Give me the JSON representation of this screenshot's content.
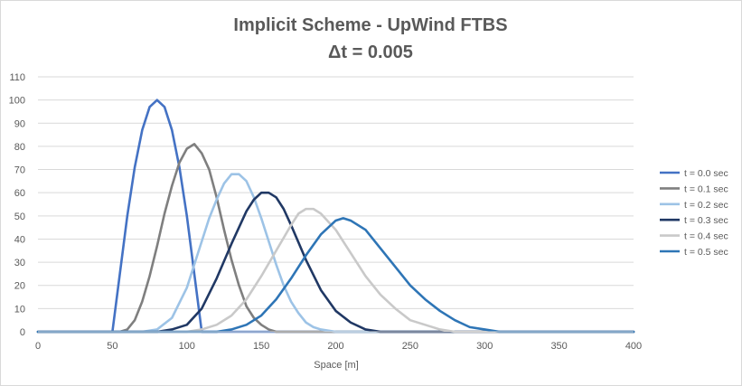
{
  "chart_data": {
    "type": "line",
    "title": "Implicit Scheme - UpWind FTBS",
    "subtitle": "Δt = 0.005",
    "xlabel": "Space [m]",
    "ylabel": "",
    "xlim": [
      0,
      400
    ],
    "ylim": [
      0,
      110
    ],
    "x_ticks": [
      0,
      50,
      100,
      150,
      200,
      250,
      300,
      350,
      400
    ],
    "y_ticks": [
      0,
      10,
      20,
      30,
      40,
      50,
      60,
      70,
      80,
      90,
      100,
      110
    ],
    "grid": "horizontal",
    "legend_position": "right",
    "series": [
      {
        "name": "t = 0.0 sec",
        "color": "#4472c4",
        "points": [
          [
            0,
            0
          ],
          [
            50,
            0
          ],
          [
            55,
            25
          ],
          [
            60,
            50
          ],
          [
            65,
            71
          ],
          [
            70,
            87
          ],
          [
            75,
            97
          ],
          [
            80,
            100
          ],
          [
            85,
            97
          ],
          [
            90,
            87
          ],
          [
            95,
            71
          ],
          [
            100,
            50
          ],
          [
            105,
            25
          ],
          [
            110,
            0
          ],
          [
            400,
            0
          ]
        ]
      },
      {
        "name": "t = 0.1 sec",
        "color": "#7f7f7f",
        "points": [
          [
            0,
            0
          ],
          [
            55,
            0
          ],
          [
            60,
            1
          ],
          [
            65,
            5
          ],
          [
            70,
            13
          ],
          [
            75,
            24
          ],
          [
            80,
            37
          ],
          [
            85,
            51
          ],
          [
            90,
            63
          ],
          [
            95,
            73
          ],
          [
            100,
            79
          ],
          [
            105,
            81
          ],
          [
            110,
            77
          ],
          [
            115,
            70
          ],
          [
            120,
            58
          ],
          [
            125,
            44
          ],
          [
            130,
            31
          ],
          [
            135,
            20
          ],
          [
            140,
            11
          ],
          [
            145,
            6
          ],
          [
            150,
            3
          ],
          [
            155,
            1
          ],
          [
            160,
            0
          ],
          [
            400,
            0
          ]
        ]
      },
      {
        "name": "t = 0.2 sec",
        "color": "#9dc3e6",
        "points": [
          [
            0,
            0
          ],
          [
            70,
            0
          ],
          [
            80,
            1
          ],
          [
            90,
            6
          ],
          [
            100,
            19
          ],
          [
            105,
            29
          ],
          [
            110,
            39
          ],
          [
            115,
            49
          ],
          [
            120,
            57
          ],
          [
            125,
            64
          ],
          [
            130,
            68
          ],
          [
            135,
            68
          ],
          [
            140,
            65
          ],
          [
            145,
            58
          ],
          [
            150,
            49
          ],
          [
            155,
            39
          ],
          [
            160,
            29
          ],
          [
            165,
            20
          ],
          [
            170,
            13
          ],
          [
            175,
            8
          ],
          [
            180,
            4
          ],
          [
            185,
            2
          ],
          [
            190,
            1
          ],
          [
            200,
            0
          ],
          [
            400,
            0
          ]
        ]
      },
      {
        "name": "t = 0.3 sec",
        "color": "#203864",
        "points": [
          [
            0,
            0
          ],
          [
            80,
            0
          ],
          [
            90,
            1
          ],
          [
            100,
            3
          ],
          [
            110,
            10
          ],
          [
            120,
            23
          ],
          [
            130,
            38
          ],
          [
            140,
            52
          ],
          [
            145,
            57
          ],
          [
            150,
            60
          ],
          [
            155,
            60
          ],
          [
            160,
            58
          ],
          [
            165,
            53
          ],
          [
            170,
            46
          ],
          [
            180,
            31
          ],
          [
            190,
            18
          ],
          [
            200,
            9
          ],
          [
            210,
            4
          ],
          [
            220,
            1
          ],
          [
            230,
            0
          ],
          [
            400,
            0
          ]
        ]
      },
      {
        "name": "t = 0.4 sec",
        "color": "#c9c9c9",
        "points": [
          [
            0,
            0
          ],
          [
            100,
            0
          ],
          [
            110,
            1
          ],
          [
            120,
            3
          ],
          [
            130,
            7
          ],
          [
            140,
            14
          ],
          [
            150,
            24
          ],
          [
            160,
            35
          ],
          [
            170,
            46
          ],
          [
            175,
            51
          ],
          [
            180,
            53
          ],
          [
            185,
            53
          ],
          [
            190,
            51
          ],
          [
            200,
            44
          ],
          [
            210,
            34
          ],
          [
            220,
            24
          ],
          [
            230,
            16
          ],
          [
            240,
            10
          ],
          [
            250,
            5
          ],
          [
            260,
            3
          ],
          [
            270,
            1
          ],
          [
            280,
            0
          ],
          [
            400,
            0
          ]
        ]
      },
      {
        "name": "t = 0.5 sec",
        "color": "#2e75b6",
        "points": [
          [
            0,
            0
          ],
          [
            110,
            0
          ],
          [
            120,
            0
          ],
          [
            130,
            1
          ],
          [
            140,
            3
          ],
          [
            150,
            7
          ],
          [
            160,
            14
          ],
          [
            170,
            23
          ],
          [
            180,
            33
          ],
          [
            190,
            42
          ],
          [
            200,
            48
          ],
          [
            205,
            49
          ],
          [
            210,
            48
          ],
          [
            220,
            44
          ],
          [
            230,
            36
          ],
          [
            240,
            28
          ],
          [
            250,
            20
          ],
          [
            260,
            14
          ],
          [
            270,
            9
          ],
          [
            280,
            5
          ],
          [
            290,
            2
          ],
          [
            300,
            1
          ],
          [
            310,
            0
          ],
          [
            400,
            0
          ]
        ]
      }
    ]
  }
}
